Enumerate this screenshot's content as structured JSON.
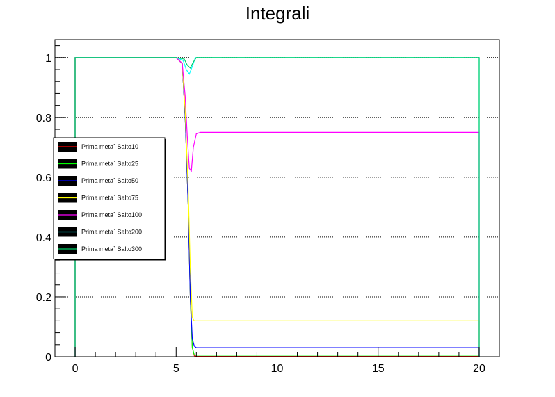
{
  "chart_data": {
    "type": "line",
    "title": "Integrali",
    "xlabel": "",
    "ylabel": "",
    "xlim": [
      -1,
      21
    ],
    "ylim": [
      0,
      1.06
    ],
    "xticks": [
      0,
      5,
      10,
      15,
      20
    ],
    "xtick_labels": [
      "0",
      "5",
      "10",
      "15",
      "20"
    ],
    "yticks": [
      0,
      0.2,
      0.4,
      0.6,
      0.8,
      1
    ],
    "ytick_labels": [
      "0",
      "0.2",
      "0.4",
      "0.6",
      "0.8",
      "1"
    ],
    "grid": "horizontal dotted",
    "legend_position": "left",
    "series": [
      {
        "name": "Prima meta` Salto10",
        "color": "#ff0000",
        "x": [
          0,
          5.0,
          5.3,
          5.45,
          5.6,
          5.7,
          5.8,
          5.9,
          6.0,
          6.1,
          20
        ],
        "y": [
          1,
          1,
          0.98,
          0.8,
          0.5,
          0.2,
          0.03,
          0.003,
          0.001,
          0.001,
          0.001
        ]
      },
      {
        "name": "Prima meta` Salto25",
        "color": "#00ff00",
        "x": [
          0,
          5.0,
          5.3,
          5.45,
          5.6,
          5.7,
          5.8,
          5.9,
          6.0,
          6.1,
          20
        ],
        "y": [
          1,
          1,
          0.98,
          0.8,
          0.5,
          0.2,
          0.03,
          0.006,
          0.005,
          0.005,
          0.005
        ]
      },
      {
        "name": "Prima meta` Salto50",
        "color": "#0000ff",
        "x": [
          0,
          5.0,
          5.3,
          5.45,
          5.6,
          5.7,
          5.8,
          5.9,
          6.0,
          6.1,
          20
        ],
        "y": [
          1,
          1,
          0.98,
          0.8,
          0.5,
          0.2,
          0.06,
          0.035,
          0.03,
          0.03,
          0.03
        ]
      },
      {
        "name": "Prima meta` Salto75",
        "color": "#ffff00",
        "x": [
          0,
          5.0,
          5.3,
          5.45,
          5.6,
          5.7,
          5.8,
          5.9,
          6.0,
          6.1,
          20
        ],
        "y": [
          1,
          1,
          0.98,
          0.82,
          0.55,
          0.3,
          0.13,
          0.12,
          0.12,
          0.12,
          0.12
        ]
      },
      {
        "name": "Prima meta` Salto100",
        "color": "#ff00ff",
        "x": [
          0,
          5.0,
          5.3,
          5.45,
          5.55,
          5.65,
          5.75,
          5.85,
          6.0,
          6.2,
          20
        ],
        "y": [
          1,
          1,
          0.98,
          0.87,
          0.74,
          0.63,
          0.62,
          0.7,
          0.745,
          0.75,
          0.75
        ]
      },
      {
        "name": "Prima meta` Salto200",
        "color": "#00ffff",
        "x": [
          0,
          5.0,
          5.35,
          5.5,
          5.65,
          5.8,
          5.95,
          20
        ],
        "y": [
          1,
          1,
          0.99,
          0.96,
          0.945,
          0.97,
          1,
          1
        ]
      },
      {
        "name": "Prima meta` Salto300",
        "color": "#00cc66",
        "x": [
          0,
          5.0,
          5.4,
          5.55,
          5.7,
          5.85,
          6.0,
          20
        ],
        "y": [
          1,
          1,
          0.995,
          0.975,
          0.965,
          0.985,
          1,
          1
        ]
      }
    ]
  }
}
